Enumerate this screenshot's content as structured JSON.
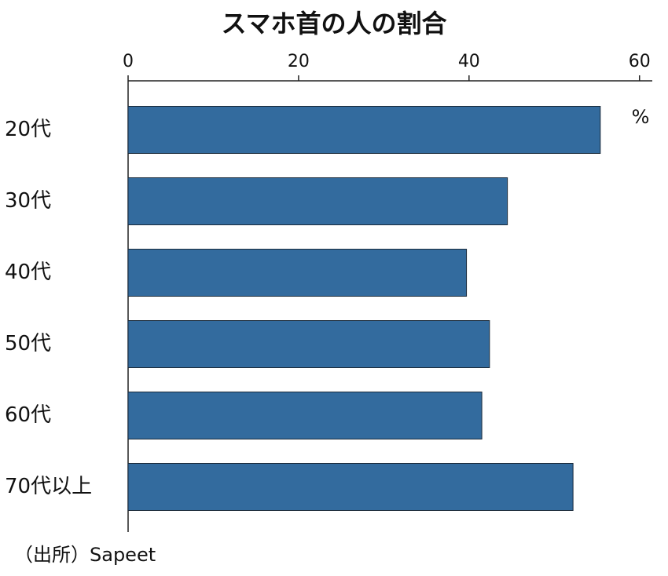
{
  "chart_data": {
    "type": "bar",
    "orientation": "horizontal",
    "title": "スマホ首の人の割合",
    "unit": "%",
    "source": "（出所）Sapeet",
    "categories": [
      "20代",
      "30代",
      "40代",
      "50代",
      "60代",
      "70代以上"
    ],
    "values": [
      55.4,
      44.5,
      39.7,
      42.4,
      41.5,
      52.2
    ],
    "color": "#336b9e",
    "xlim": [
      0,
      61.5
    ],
    "xticks": [
      0,
      20,
      40,
      60
    ],
    "grid": false
  }
}
